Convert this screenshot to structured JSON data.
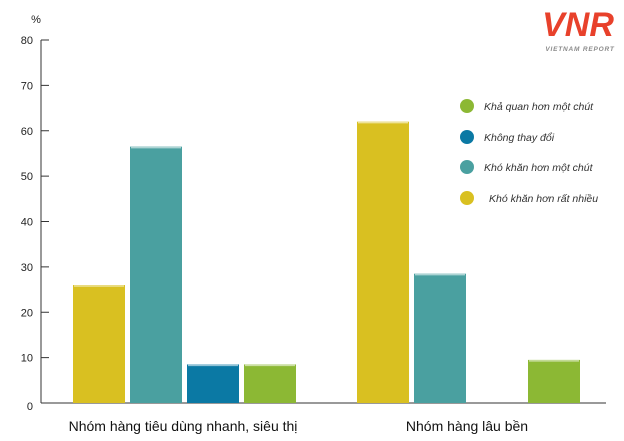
{
  "chart_data": {
    "type": "bar",
    "ylabel": "%",
    "ylim": [
      0,
      80
    ],
    "yticks": [
      0,
      10,
      20,
      30,
      40,
      50,
      60,
      70,
      80
    ],
    "grid": false,
    "legend_position": "right",
    "categories": [
      "Nhóm hàng tiêu dùng nhanh, siêu thị",
      "Nhóm hàng lâu bền"
    ],
    "series": [
      {
        "name": "Khó khăn hơn  rất nhiều",
        "color": "#d9c021",
        "values": [
          26,
          62
        ]
      },
      {
        "name": "Khó khăn hơn một chút",
        "color": "#4aa0a0",
        "values": [
          56.5,
          28.5
        ]
      },
      {
        "name": "Không thay đổi",
        "color": "#0b79a4",
        "values": [
          8.5,
          0
        ]
      },
      {
        "name": "Khả quan hơn một chút",
        "color": "#8cb834",
        "values": [
          8.5,
          9.5
        ]
      }
    ],
    "legend_order": [
      3,
      2,
      1,
      0
    ]
  },
  "logo": {
    "mark": "VNR",
    "subtitle": "VIETNAM REPORT",
    "color": "#e8412b",
    "subcolor": "#8a8a8a"
  }
}
